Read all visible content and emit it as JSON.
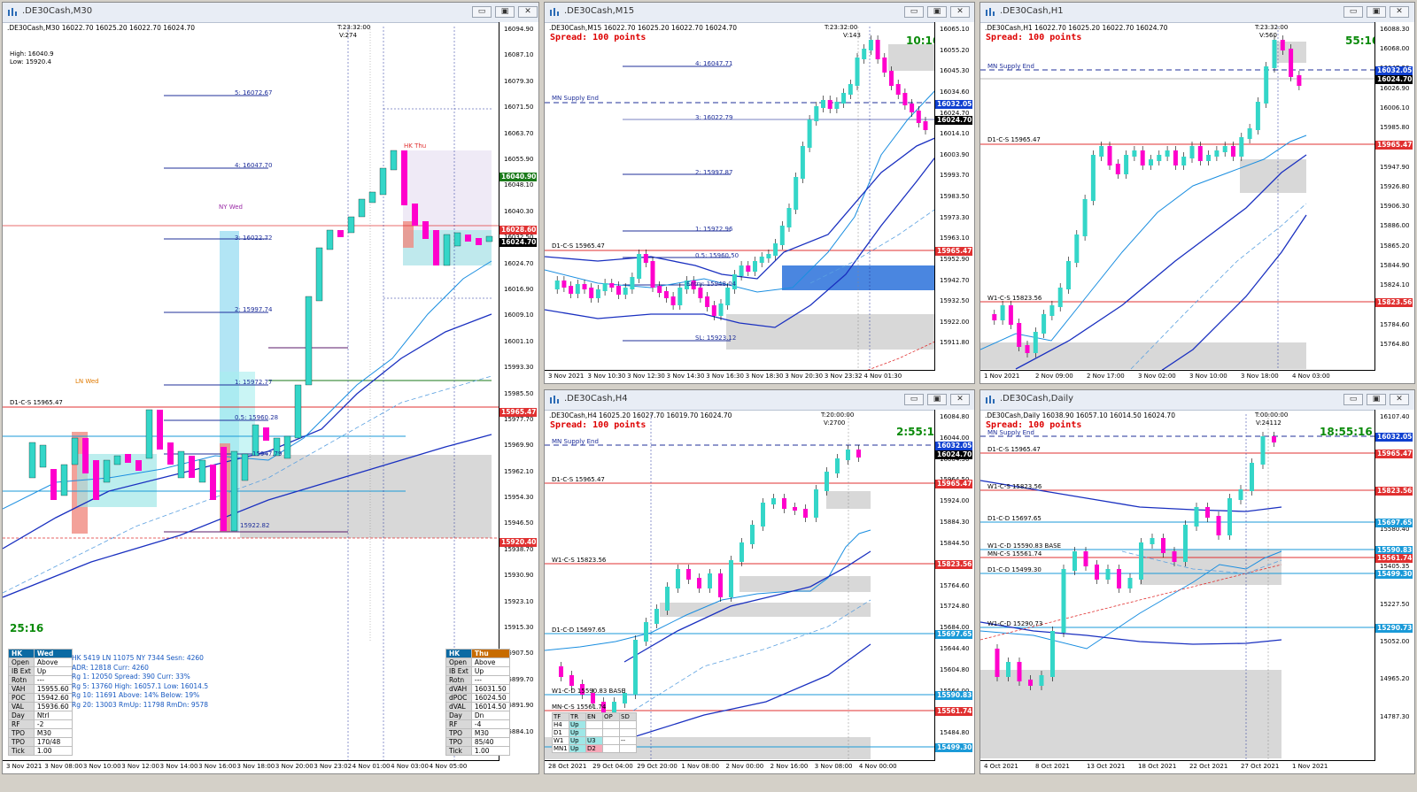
{
  "windows": {
    "m30": {
      "title": ".DE30Cash,M30",
      "info": ".DE30Cash,M30  16022.70 16025.20 16022.70 16024.70",
      "server_time": "T:23:32:00",
      "volume": "V:274",
      "high": "High: 16040.9",
      "low": "Low: 15920.4",
      "timer": "25:16",
      "price_ticks": [
        "16094.90",
        "16087.10",
        "16079.30",
        "16071.50",
        "16063.70",
        "16055.90",
        "16048.10",
        "16040.30",
        "16032.50",
        "16024.70",
        "16016.90",
        "16009.10",
        "16001.10",
        "15993.30",
        "15985.50",
        "15977.70",
        "15969.90",
        "15962.10",
        "15954.30",
        "15946.50",
        "15938.70",
        "15930.90",
        "15923.10",
        "15915.30",
        "15907.50",
        "15899.70",
        "15891.90",
        "15884.10"
      ],
      "price_labels": [
        {
          "text": "16040.90",
          "color": "#1a7a1a"
        },
        {
          "text": "16028.60",
          "color": "#e03030"
        },
        {
          "text": "16024.70",
          "color": "#000000"
        },
        {
          "text": "15965.47",
          "color": "#e03030"
        },
        {
          "text": "15920.40",
          "color": "#e03030"
        }
      ],
      "levels": {
        "l5": "5: 16072.67",
        "l4": "4: 16047.70",
        "l3": "3: 16022.72",
        "l2": "2: 15997.74",
        "l1": "1: 15972.77",
        "l05": "0.5: 15960.28",
        "l047": "15947.79",
        "l0": "15922.82",
        "dcs": "D1-C-S 15965.47"
      },
      "session_labels": {
        "hk": "HK Thu",
        "ny": "NY Wed",
        "ln": "LN Wed"
      },
      "time_ticks": [
        "3 Nov 2021",
        "3 Nov 08:00",
        "3 Nov 10:00",
        "3 Nov 12:00",
        "3 Nov 14:00",
        "3 Nov 16:00",
        "3 Nov 18:00",
        "3 Nov 20:00",
        "3 Nov 23:02",
        "4 Nov 01:00",
        "4 Nov 03:00",
        "4 Nov 05:00"
      ],
      "tpo_left": {
        "head": [
          "HK",
          "Wed"
        ],
        "rows": [
          [
            "Open",
            "Above"
          ],
          [
            "IB Ext",
            "Up"
          ],
          [
            "Rotn",
            "---"
          ],
          [
            "VAH",
            "15955.60"
          ],
          [
            "POC",
            "15942.60"
          ],
          [
            "VAL",
            "15936.60"
          ],
          [
            "Day",
            "Ntrl"
          ],
          [
            "RF",
            "-2"
          ],
          [
            "TPO",
            "M30"
          ],
          [
            "TPO",
            "170/48"
          ],
          [
            "Tick",
            "1.00"
          ]
        ]
      },
      "stats": [
        "HK  5419  LN  11075  NY  7344   Sesn:  4260",
        "                   ADR:   12818    Curr:   4260",
        "Rg  1:  12050  Spread:  390     Curr:    33%",
        "Rg  5:  13760  High:  16057.1  Low:  16014.5",
        "Rg 10: 11691  Above:  14%      Below:  19%",
        "Rg 20: 13003  RmUp: 11798    RmDn:  9578"
      ],
      "tpo_right": {
        "head": [
          "HK",
          "Thu"
        ],
        "rows": [
          [
            "Open",
            "Above"
          ],
          [
            "IB Ext",
            "Up"
          ],
          [
            "Rotn",
            "---"
          ],
          [
            "dVAH",
            "16031.50"
          ],
          [
            "dPOC",
            "16024.50"
          ],
          [
            "dVAL",
            "16014.50"
          ],
          [
            "Day",
            "Dn"
          ],
          [
            "RF",
            "-4"
          ],
          [
            "TPO",
            "M30"
          ],
          [
            "TPO",
            "85/40"
          ],
          [
            "Tick",
            "1.00"
          ]
        ]
      }
    },
    "m15": {
      "title": ".DE30Cash,M15",
      "info": ".DE30Cash,M15  16022.70 16025.20 16022.70 16024.70",
      "server_time": "T:23:32:00",
      "volume": "V:143",
      "spread": "Spread: 100 points",
      "timer": "10:16",
      "price_ticks": [
        "16065.10",
        "16055.20",
        "16045.30",
        "16034.60",
        "16024.70",
        "16014.10",
        "16003.90",
        "15993.70",
        "15983.50",
        "15973.30",
        "15963.10",
        "15952.90",
        "15942.70",
        "15932.50",
        "15922.00",
        "15911.80"
      ],
      "price_labels": [
        {
          "text": "16032.05",
          "color": "#1040d0"
        },
        {
          "text": "16024.70",
          "color": "#000000"
        },
        {
          "text": "15965.47",
          "color": "#e03030"
        }
      ],
      "levels": {
        "l4": "4: 16047.71",
        "mn": "MN Supply End",
        "l3": "3: 16022.79",
        "l2": "2: 15997.87",
        "l1": "1: 15972.96",
        "l05": "0.5: 15960.50",
        "entry": "Entry: 15948.04",
        "sl": "SL: 15923.12",
        "dcs": "D1-C-S 15965.47"
      },
      "time_ticks": [
        "3 Nov 2021",
        "3 Nov 10:30",
        "3 Nov 12:30",
        "3 Nov 14:30",
        "3 Nov 16:30",
        "3 Nov 18:30",
        "3 Nov 20:30",
        "3 Nov 23:32",
        "4 Nov 01:30"
      ]
    },
    "h1": {
      "title": ".DE30Cash,H1",
      "info": ".DE30Cash,H1  16022.70 16025.20 16022.70 16024.70",
      "server_time": "T:23:32:00",
      "volume": "V:560",
      "spread": "Spread: 100 points",
      "timer": "55:16",
      "price_ticks": [
        "16088.30",
        "16068.00",
        "16047.20",
        "16026.90",
        "16006.10",
        "15985.80",
        "15965.00",
        "15947.90",
        "15926.80",
        "15906.30",
        "15886.00",
        "15865.20",
        "15844.90",
        "15824.10",
        "15803.80",
        "15784.60",
        "15764.80"
      ],
      "price_labels": [
        {
          "text": "16032.05",
          "color": "#1040d0"
        },
        {
          "text": "16024.70",
          "color": "#000000"
        },
        {
          "text": "15965.47",
          "color": "#e03030"
        },
        {
          "text": "15823.56",
          "color": "#e03030"
        }
      ],
      "levels": {
        "mn": "MN Supply End",
        "dcs": "D1-C-S 15965.47",
        "wcs": "W1-C-S 15823.56"
      },
      "time_ticks": [
        "1 Nov 2021",
        "2 Nov 09:00",
        "2 Nov 17:00",
        "3 Nov 02:00",
        "3 Nov 10:00",
        "3 Nov 18:00",
        "4 Nov 03:00"
      ]
    },
    "h4": {
      "title": ".DE30Cash,H4",
      "info": ".DE30Cash,H4  16025.20 16027.70 16019.70 16024.70",
      "server_time": "T:20:00:00",
      "volume": "V:2700",
      "spread": "Spread: 100 points",
      "timer": "2:55:16",
      "price_ticks": [
        "16084.80",
        "16044.00",
        "16004.30",
        "15964.50",
        "15924.00",
        "15884.30",
        "15844.50",
        "15804.30",
        "15764.60",
        "15724.80",
        "15684.00",
        "15644.40",
        "15604.80",
        "15564.00",
        "15524.40",
        "15484.80"
      ],
      "price_labels": [
        {
          "text": "16032.05",
          "color": "#1040d0"
        },
        {
          "text": "16024.70",
          "color": "#000000"
        },
        {
          "text": "15965.47",
          "color": "#e03030"
        },
        {
          "text": "15823.56",
          "color": "#e03030"
        },
        {
          "text": "15697.65",
          "color": "#1a9ad8"
        },
        {
          "text": "15590.83",
          "color": "#1a9ad8"
        },
        {
          "text": "15561.74",
          "color": "#e03030"
        },
        {
          "text": "15499.30",
          "color": "#1a9ad8"
        }
      ],
      "levels": {
        "mn": "MN Supply End",
        "dcs": "D1-C-S 15965.47",
        "wcs": "W1-C-S 15823.56",
        "dcd": "D1-C-D 15697.65",
        "wcd": "W1-C-D 15590.83 BASE",
        "mncs": "MN-C-S 15561.74"
      },
      "tf_table": {
        "head": [
          "TF",
          "TR",
          "EN",
          "OP",
          "SD"
        ],
        "rows": [
          [
            "H4",
            "Up",
            "",
            "",
            ""
          ],
          [
            "D1",
            "Up",
            "",
            "",
            ""
          ],
          [
            "W1",
            "Up",
            "U3",
            "",
            "--"
          ],
          [
            "MN1",
            "Up",
            "D2",
            "",
            ""
          ]
        ]
      },
      "time_ticks": [
        "28 Oct 2021",
        "29 Oct 04:00",
        "29 Oct 20:00",
        "1 Nov 08:00",
        "2 Nov 00:00",
        "2 Nov 16:00",
        "3 Nov 08:00",
        "4 Nov 00:00"
      ]
    },
    "d1": {
      "title": ".DE30Cash,Daily",
      "info": ".DE30Cash,Daily  16038.90 16057.10 16014.50 16024.70",
      "server_time": "T:00:00:00",
      "volume": "V:24112",
      "spread": "Spread: 100 points",
      "timer": "18:55:16",
      "price_ticks": [
        "16107.40",
        "15932.00",
        "15754.95",
        "15580.40",
        "15405.35",
        "15227.50",
        "15052.00",
        "14965.20",
        "14787.30"
      ],
      "price_labels": [
        {
          "text": "16032.05",
          "color": "#1040d0"
        },
        {
          "text": "15965.47",
          "color": "#e03030"
        },
        {
          "text": "15823.56",
          "color": "#e03030"
        },
        {
          "text": "15697.65",
          "color": "#1a9ad8"
        },
        {
          "text": "15590.83",
          "color": "#1a9ad8"
        },
        {
          "text": "15561.74",
          "color": "#e03030"
        },
        {
          "text": "15499.30",
          "color": "#1a9ad8"
        },
        {
          "text": "15290.73",
          "color": "#1a9ad8"
        }
      ],
      "levels": {
        "mn": "MN Supply End",
        "dcs": "D1-C-S 15965.47",
        "wcs": "W1-C-S 15823.56",
        "dcd": "D1-C-D 15697.65",
        "wcd": "W1-C-D 15590.83 BASE",
        "mncs": "MN-C-S 15561.74",
        "dcd2": "D1-C-D 15499.30",
        "wcd2": "W1-C-D 15290.73"
      },
      "time_ticks": [
        "4 Oct 2021",
        "8 Oct 2021",
        "13 Oct 2021",
        "18 Oct 2021",
        "22 Oct 2021",
        "27 Oct 2021",
        "1 Nov 2021"
      ]
    }
  }
}
